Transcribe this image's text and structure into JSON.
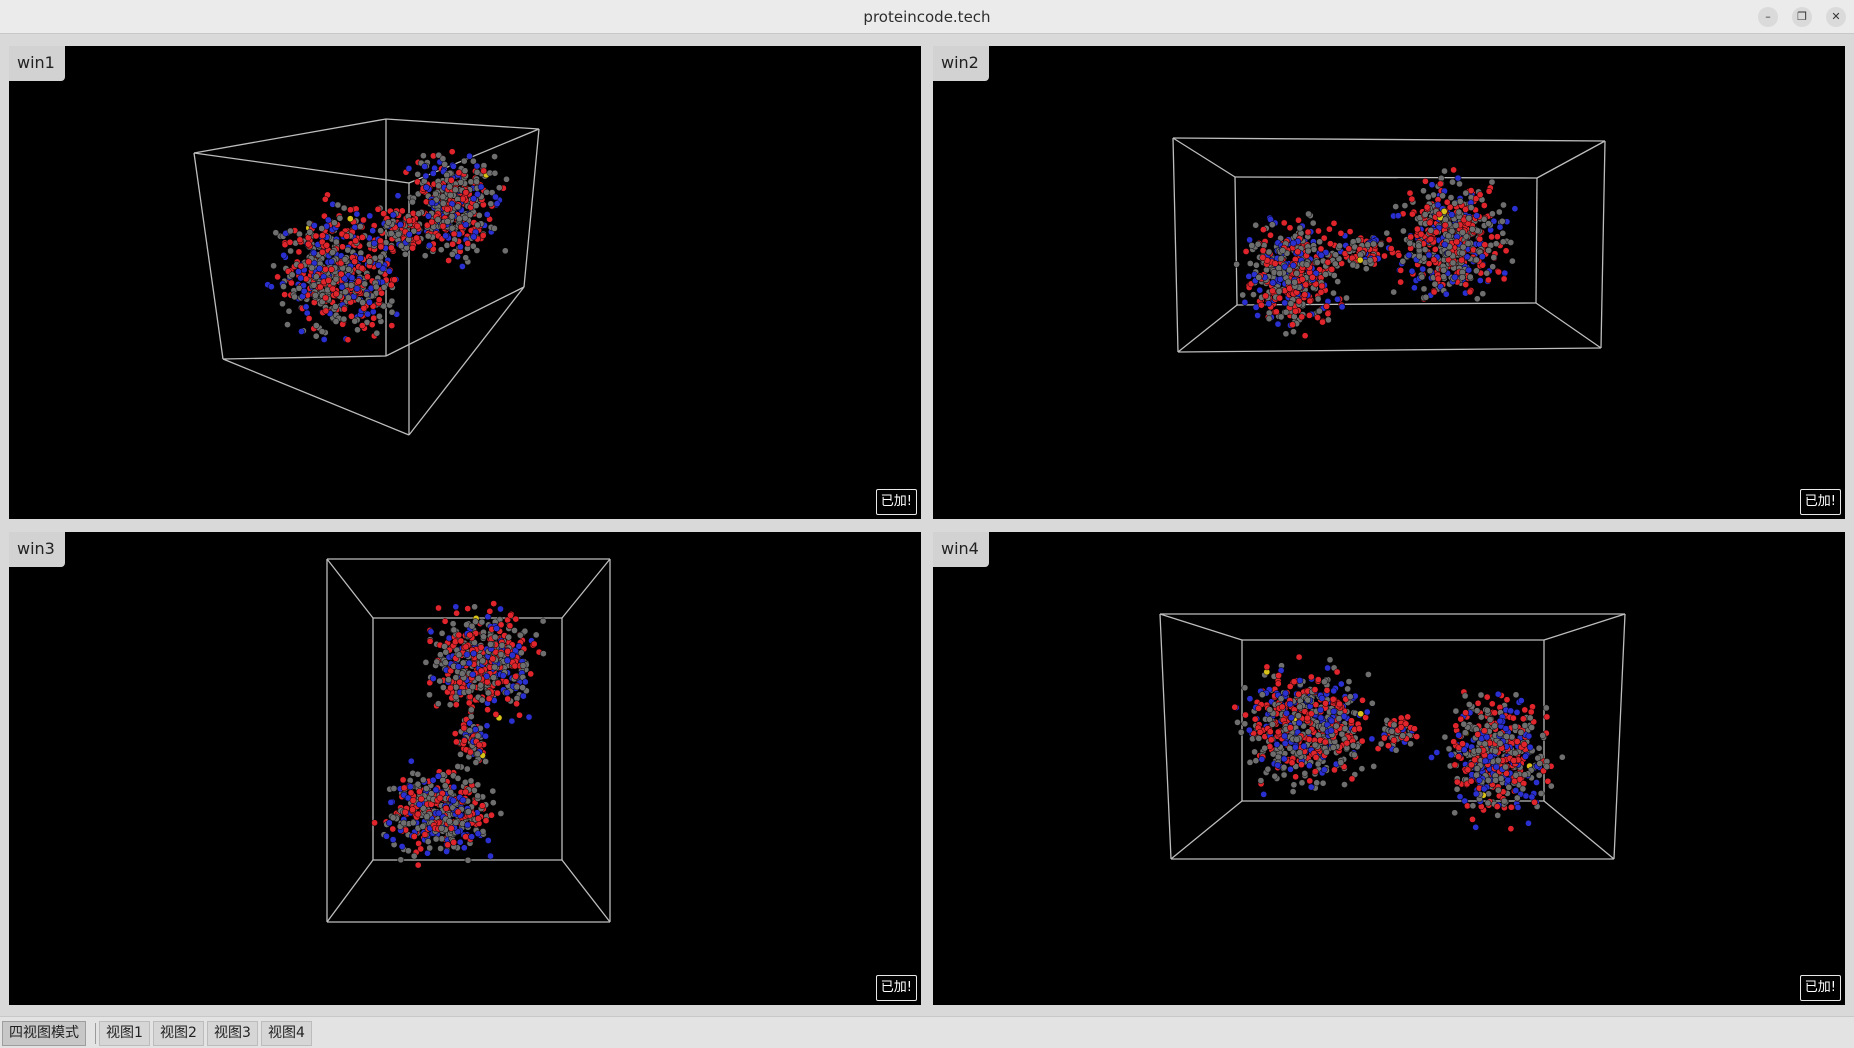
{
  "window": {
    "title": "proteincode.tech"
  },
  "viewports": [
    {
      "label": "win1",
      "badge": "已加!"
    },
    {
      "label": "win2",
      "badge": "已加!"
    },
    {
      "label": "win3",
      "badge": "已加!"
    },
    {
      "label": "win4",
      "badge": "已加!"
    }
  ],
  "tabs": [
    {
      "label": "四视图模式",
      "active": true
    },
    {
      "label": "视图1"
    },
    {
      "label": "视图2"
    },
    {
      "label": "视图3"
    },
    {
      "label": "视图4"
    }
  ],
  "colors": {
    "background": "#000000",
    "box_lines": "#bdbdbd",
    "atom_oxygen": "#e0242b",
    "atom_nitrogen": "#2a2fd0",
    "atom_carbon": "#6e6e6e",
    "atom_sulfur": "#d8c21a"
  }
}
